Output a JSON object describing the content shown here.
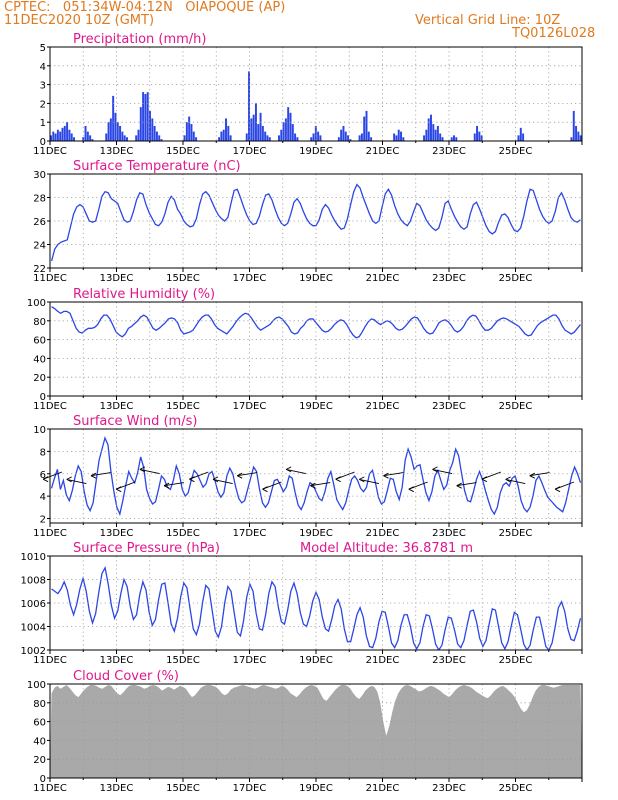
{
  "header": {
    "line1": "CPTEC:   051:34W-04:12N   OIAPOQUE (AP)",
    "line2": "11DEC2020 10Z (GMT)",
    "grid_note": "Vertical Grid Line: 10Z",
    "code": "TQ0126L028"
  },
  "colors": {
    "header": "#e07a1f",
    "panel_title": "#e0188c",
    "series": "#2b46e6",
    "cloud": "#a9a9a9",
    "axis": "#000000",
    "grid": "#9a9a9a"
  },
  "chart_data": [
    {
      "id": "precip",
      "type": "bar",
      "title": "Precipitation (mm/h)",
      "x_labels": [
        "11DEC",
        "13DEC",
        "15DEC",
        "17DEC",
        "19DEC",
        "21DEC",
        "23DEC",
        "25DEC"
      ],
      "ylim": [
        0,
        5
      ],
      "yticks": [
        0,
        1,
        2,
        3,
        4,
        5
      ],
      "grid": true,
      "values": [
        0.3,
        0.5,
        0.4,
        0.6,
        0.5,
        0.7,
        0.8,
        1.0,
        0.6,
        0.4,
        0.2,
        0,
        0,
        0,
        0.2,
        0.8,
        0.5,
        0.3,
        0.1,
        0,
        0,
        0,
        0,
        0,
        0.4,
        1.0,
        1.2,
        2.4,
        1.5,
        1.0,
        0.8,
        0.5,
        0.3,
        0.2,
        0,
        0,
        0,
        0.3,
        0.6,
        1.8,
        2.6,
        2.5,
        2.6,
        1.6,
        1.2,
        0.8,
        0.5,
        0.3,
        0.1,
        0,
        0,
        0,
        0,
        0,
        0,
        0,
        0,
        0,
        0.3,
        1.0,
        1.3,
        0.9,
        0.5,
        0.2,
        0,
        0,
        0,
        0,
        0,
        0,
        0,
        0,
        0,
        0.2,
        0.5,
        0.6,
        1.2,
        0.8,
        0.3,
        0,
        0,
        0,
        0,
        0,
        0,
        0.4,
        3.7,
        1.2,
        1.4,
        2.0,
        0.9,
        1.5,
        0.8,
        0.5,
        0.3,
        0.2,
        0,
        0,
        0,
        0.3,
        0.6,
        1.0,
        1.2,
        1.8,
        1.5,
        0.9,
        0.4,
        0.2,
        0,
        0,
        0,
        0,
        0,
        0.2,
        0.4,
        0.8,
        0.5,
        0.3,
        0,
        0,
        0,
        0,
        0,
        0,
        0,
        0.2,
        0.6,
        0.8,
        0.5,
        0.3,
        0.1,
        0,
        0,
        0,
        0.3,
        0.4,
        1.3,
        1.6,
        0.5,
        0.2,
        0,
        0,
        0,
        0,
        0,
        0,
        0,
        0,
        0,
        0.4,
        0.3,
        0.6,
        0.5,
        0.2,
        0,
        0,
        0,
        0,
        0,
        0,
        0,
        0,
        0.3,
        0.6,
        1.2,
        1.4,
        0.9,
        0.6,
        0.8,
        0.4,
        0.2,
        0,
        0,
        0,
        0.2,
        0.3,
        0.2,
        0,
        0,
        0,
        0,
        0,
        0,
        0,
        0.4,
        0.8,
        0.5,
        0.3,
        0,
        0,
        0,
        0,
        0,
        0,
        0,
        0,
        0,
        0,
        0,
        0,
        0,
        0,
        0,
        0.3,
        0.7,
        0.4,
        0,
        0,
        0,
        0,
        0,
        0,
        0,
        0,
        0,
        0,
        0,
        0,
        0,
        0,
        0,
        0,
        0,
        0,
        0,
        0,
        0.2,
        1.6,
        0.8,
        0.5,
        0.3
      ]
    },
    {
      "id": "temp",
      "type": "line",
      "title": "Surface Temperature (nC)",
      "x_labels": [
        "11DEC",
        "13DEC",
        "15DEC",
        "17DEC",
        "19DEC",
        "21DEC",
        "23DEC",
        "25DEC"
      ],
      "ylim": [
        22,
        30
      ],
      "yticks": [
        22,
        24,
        26,
        28,
        30
      ],
      "grid": true,
      "values": [
        22.6,
        23.6,
        24.0,
        24.2,
        24.3,
        24.4,
        25.5,
        26.6,
        27.2,
        27.4,
        27.2,
        26.6,
        26.0,
        25.9,
        26.0,
        27.0,
        28.1,
        28.5,
        28.4,
        27.9,
        27.7,
        27.5,
        26.8,
        26.1,
        25.9,
        26.0,
        26.8,
        27.8,
        28.4,
        28.3,
        27.4,
        26.7,
        26.2,
        25.7,
        25.6,
        25.9,
        26.6,
        27.6,
        28.1,
        27.8,
        27.0,
        26.6,
        26.0,
        25.7,
        25.5,
        25.6,
        26.2,
        27.4,
        28.3,
        28.5,
        28.2,
        27.6,
        27.0,
        26.5,
        26.2,
        26.0,
        26.3,
        27.5,
        28.6,
        28.7,
        28.0,
        27.2,
        26.5,
        26.0,
        25.7,
        25.8,
        26.4,
        27.4,
        28.2,
        28.3,
        27.8,
        27.0,
        26.3,
        25.8,
        25.6,
        25.8,
        26.6,
        27.6,
        27.9,
        27.5,
        26.8,
        26.2,
        25.8,
        25.6,
        25.6,
        26.1,
        27.0,
        27.4,
        27.1,
        26.5,
        26.0,
        25.6,
        25.3,
        25.4,
        26.2,
        27.4,
        28.5,
        29.1,
        28.8,
        28.0,
        27.3,
        26.6,
        26.0,
        25.8,
        26.0,
        27.2,
        28.3,
        28.7,
        28.2,
        27.3,
        26.6,
        26.1,
        25.8,
        25.6,
        26.0,
        26.8,
        27.5,
        27.3,
        26.7,
        26.1,
        25.7,
        25.4,
        25.2,
        25.4,
        26.3,
        27.5,
        27.7,
        27.0,
        26.4,
        25.9,
        25.5,
        25.3,
        25.5,
        26.6,
        27.4,
        27.6,
        27.0,
        26.3,
        25.6,
        25.1,
        24.9,
        25.1,
        25.9,
        26.5,
        26.6,
        26.3,
        25.7,
        25.2,
        25.1,
        25.4,
        26.4,
        27.7,
        28.7,
        28.6,
        27.8,
        27.0,
        26.4,
        26.0,
        25.8,
        26.0,
        26.8,
        28.0,
        28.4,
        27.8,
        27.0,
        26.3,
        26.0,
        25.9,
        26.1
      ]
    },
    {
      "id": "rh",
      "type": "line",
      "title": "Relative Humidity (%)",
      "x_labels": [
        "11DEC",
        "13DEC",
        "15DEC",
        "17DEC",
        "19DEC",
        "21DEC",
        "23DEC",
        "25DEC"
      ],
      "ylim": [
        0,
        100
      ],
      "yticks": [
        0,
        20,
        40,
        60,
        80,
        100
      ],
      "grid": true,
      "values": [
        95,
        93,
        90,
        88,
        90,
        90,
        88,
        80,
        72,
        68,
        67,
        70,
        72,
        72,
        73,
        76,
        82,
        86,
        86,
        82,
        75,
        68,
        65,
        63,
        66,
        72,
        74,
        77,
        80,
        84,
        86,
        84,
        78,
        72,
        70,
        72,
        75,
        78,
        82,
        83,
        82,
        78,
        70,
        66,
        67,
        68,
        70,
        75,
        80,
        84,
        86,
        86,
        82,
        76,
        72,
        70,
        68,
        66,
        70,
        74,
        79,
        83,
        86,
        88,
        87,
        83,
        78,
        73,
        70,
        72,
        74,
        76,
        80,
        83,
        84,
        82,
        78,
        74,
        68,
        66,
        67,
        72,
        75,
        80,
        82,
        82,
        78,
        74,
        70,
        68,
        69,
        72,
        76,
        79,
        81,
        80,
        76,
        70,
        65,
        62,
        63,
        68,
        74,
        79,
        82,
        81,
        78,
        76,
        78,
        80,
        79,
        76,
        72,
        70,
        71,
        74,
        78,
        82,
        84,
        83,
        78,
        72,
        68,
        66,
        67,
        72,
        78,
        80,
        81,
        79,
        75,
        70,
        68,
        70,
        74,
        80,
        84,
        86,
        85,
        80,
        74,
        70,
        70,
        72,
        76,
        80,
        82,
        83,
        82,
        80,
        78,
        76,
        74,
        70,
        66,
        64,
        65,
        70,
        75,
        78,
        80,
        82,
        84,
        86,
        86,
        82,
        75,
        70,
        68,
        66,
        68,
        72,
        76
      ]
    },
    {
      "id": "wind",
      "type": "line",
      "title": "Surface Wind (m/s)",
      "x_labels": [
        "11DEC",
        "13DEC",
        "15DEC",
        "17DEC",
        "19DEC",
        "21DEC",
        "23DEC",
        "25DEC"
      ],
      "ylim": [
        1.6,
        10
      ],
      "yticks": [
        2,
        4,
        6,
        8,
        10
      ],
      "grid": true,
      "values": [
        4.7,
        5.6,
        6.4,
        4.6,
        5.4,
        4.1,
        3.6,
        4.5,
        5.8,
        6.7,
        6.2,
        4.4,
        3.2,
        2.7,
        3.4,
        5.3,
        7.2,
        8.2,
        9.2,
        8.6,
        6.2,
        4.4,
        3.0,
        2.4,
        3.6,
        5.0,
        6.2,
        5.6,
        5.2,
        6.1,
        7.5,
        6.6,
        4.6,
        3.8,
        3.3,
        3.5,
        4.6,
        5.8,
        5.5,
        4.8,
        4.6,
        5.4,
        6.7,
        6.0,
        4.6,
        4.0,
        4.3,
        5.4,
        6.3,
        6.0,
        5.4,
        4.8,
        5.1,
        6.0,
        6.2,
        5.4,
        4.4,
        3.9,
        4.3,
        5.8,
        6.5,
        6.0,
        4.8,
        3.8,
        3.4,
        3.6,
        4.6,
        5.6,
        6.6,
        6.2,
        4.6,
        3.4,
        3.0,
        3.4,
        4.4,
        5.4,
        5.5,
        5.0,
        4.4,
        4.8,
        5.8,
        5.6,
        4.3,
        3.2,
        2.8,
        3.4,
        4.4,
        5.2,
        5.0,
        4.4,
        3.8,
        3.6,
        4.4,
        5.6,
        6.2,
        5.0,
        3.7,
        3.2,
        2.8,
        3.4,
        4.5,
        5.5,
        5.8,
        5.4,
        4.7,
        4.4,
        4.8,
        6.0,
        6.3,
        5.2,
        3.9,
        3.3,
        3.5,
        4.5,
        5.6,
        5.5,
        4.4,
        3.7,
        4.8,
        7.2,
        8.2,
        7.5,
        6.4,
        6.7,
        6.8,
        5.5,
        4.3,
        3.6,
        4.4,
        5.8,
        6.3,
        5.4,
        4.6,
        5.0,
        6.3,
        7.0,
        8.2,
        7.6,
        6.0,
        4.5,
        3.6,
        3.5,
        4.4,
        5.5,
        6.2,
        5.5,
        4.5,
        3.6,
        2.8,
        2.4,
        3.0,
        4.3,
        5.0,
        5.2,
        4.9,
        5.6,
        5.8,
        4.9,
        3.6,
        2.9,
        2.6,
        3.0,
        4.0,
        5.4,
        5.8,
        5.2,
        4.5,
        3.9,
        3.6,
        3.3,
        3.0,
        2.8,
        2.6,
        3.4,
        4.6,
        5.8,
        6.6,
        6.0,
        5.2
      ]
    },
    {
      "id": "pressure",
      "type": "line",
      "title": "Surface Pressure (hPa)",
      "annotation": "Model Altitude: 36.8781 m",
      "x_labels": [
        "11DEC",
        "13DEC",
        "15DEC",
        "17DEC",
        "19DEC",
        "21DEC",
        "23DEC",
        "25DEC"
      ],
      "ylim": [
        1002,
        1010
      ],
      "yticks": [
        1002,
        1004,
        1006,
        1008,
        1010
      ],
      "grid": true,
      "values": [
        1007.2,
        1007.0,
        1006.8,
        1007.2,
        1007.8,
        1007.1,
        1005.8,
        1005.0,
        1005.9,
        1007.2,
        1008.1,
        1007.0,
        1005.3,
        1004.3,
        1005.1,
        1006.9,
        1008.5,
        1009.0,
        1007.6,
        1005.8,
        1004.7,
        1005.3,
        1006.8,
        1008.0,
        1007.4,
        1005.7,
        1004.6,
        1005.0,
        1006.7,
        1007.8,
        1007.1,
        1005.2,
        1004.1,
        1004.6,
        1006.3,
        1007.6,
        1007.7,
        1006.0,
        1004.2,
        1003.6,
        1004.7,
        1006.5,
        1007.7,
        1007.3,
        1005.5,
        1003.8,
        1003.3,
        1004.2,
        1006.1,
        1007.5,
        1007.2,
        1005.4,
        1003.6,
        1003.1,
        1004.0,
        1006.0,
        1007.4,
        1007.0,
        1005.2,
        1003.5,
        1003.2,
        1004.5,
        1006.5,
        1007.6,
        1007.0,
        1005.1,
        1003.8,
        1003.7,
        1005.0,
        1006.8,
        1007.8,
        1007.4,
        1005.7,
        1004.4,
        1004.2,
        1005.4,
        1007.0,
        1007.7,
        1006.8,
        1005.2,
        1004.2,
        1004.0,
        1004.9,
        1006.2,
        1006.9,
        1006.3,
        1004.8,
        1003.8,
        1003.6,
        1004.6,
        1005.8,
        1006.3,
        1005.5,
        1003.8,
        1002.7,
        1002.7,
        1003.8,
        1005.0,
        1005.6,
        1004.8,
        1003.2,
        1002.3,
        1002.2,
        1003.0,
        1004.4,
        1005.3,
        1005.2,
        1004.0,
        1002.6,
        1002.2,
        1002.8,
        1004.1,
        1005.0,
        1005.0,
        1004.0,
        1002.6,
        1002.1,
        1002.6,
        1004.0,
        1005.0,
        1004.9,
        1003.8,
        1002.5,
        1002.0,
        1002.4,
        1003.7,
        1004.8,
        1004.7,
        1003.7,
        1002.5,
        1002.2,
        1002.8,
        1004.1,
        1005.3,
        1005.4,
        1004.4,
        1003.0,
        1002.3,
        1002.8,
        1004.2,
        1005.5,
        1005.4,
        1004.0,
        1002.6,
        1002.1,
        1002.7,
        1004.0,
        1005.2,
        1005.0,
        1003.8,
        1002.5,
        1002.0,
        1002.4,
        1003.7,
        1004.8,
        1004.8,
        1003.6,
        1002.3,
        1002.0,
        1002.6,
        1004.0,
        1005.6,
        1006.1,
        1005.3,
        1003.8,
        1002.9,
        1002.8,
        1003.6,
        1004.7
      ]
    },
    {
      "id": "cloud",
      "type": "area",
      "title": "Cloud Cover (%)",
      "x_labels": [
        "11DEC",
        "13DEC",
        "15DEC",
        "17DEC",
        "19DEC",
        "21DEC",
        "23DEC",
        "25DEC"
      ],
      "ylim": [
        0,
        100
      ],
      "yticks": [
        0,
        20,
        40,
        60,
        80,
        100
      ],
      "grid": true,
      "values": [
        90,
        96,
        98,
        95,
        97,
        99,
        96,
        92,
        88,
        86,
        90,
        94,
        97,
        99,
        99,
        98,
        96,
        95,
        97,
        99,
        98,
        94,
        90,
        88,
        91,
        95,
        98,
        99,
        99,
        98,
        97,
        95,
        96,
        98,
        99,
        98,
        96,
        93,
        95,
        97,
        96,
        94,
        96,
        98,
        97,
        95,
        90,
        86,
        88,
        92,
        96,
        98,
        99,
        99,
        98,
        97,
        94,
        90,
        88,
        90,
        94,
        96,
        97,
        98,
        99,
        98,
        97,
        96,
        95,
        96,
        98,
        99,
        98,
        97,
        96,
        95,
        96,
        98,
        97,
        94,
        90,
        88,
        86,
        89,
        93,
        96,
        98,
        99,
        98,
        96,
        90,
        84,
        82,
        86,
        90,
        94,
        97,
        99,
        99,
        98,
        95,
        90,
        86,
        84,
        88,
        93,
        96,
        98,
        97,
        92,
        80,
        60,
        45,
        55,
        70,
        82,
        90,
        95,
        98,
        99,
        98,
        96,
        94,
        92,
        93,
        95,
        97,
        98,
        97,
        95,
        93,
        90,
        88,
        86,
        89,
        93,
        96,
        98,
        99,
        98,
        97,
        95,
        92,
        90,
        88,
        86,
        85,
        88,
        92,
        95,
        97,
        98,
        96,
        93,
        90,
        86,
        80,
        74,
        70,
        72,
        78,
        86,
        93,
        97,
        99,
        99,
        98,
        97,
        96,
        97,
        98,
        99,
        99,
        99,
        99,
        99,
        99,
        99
      ]
    }
  ]
}
